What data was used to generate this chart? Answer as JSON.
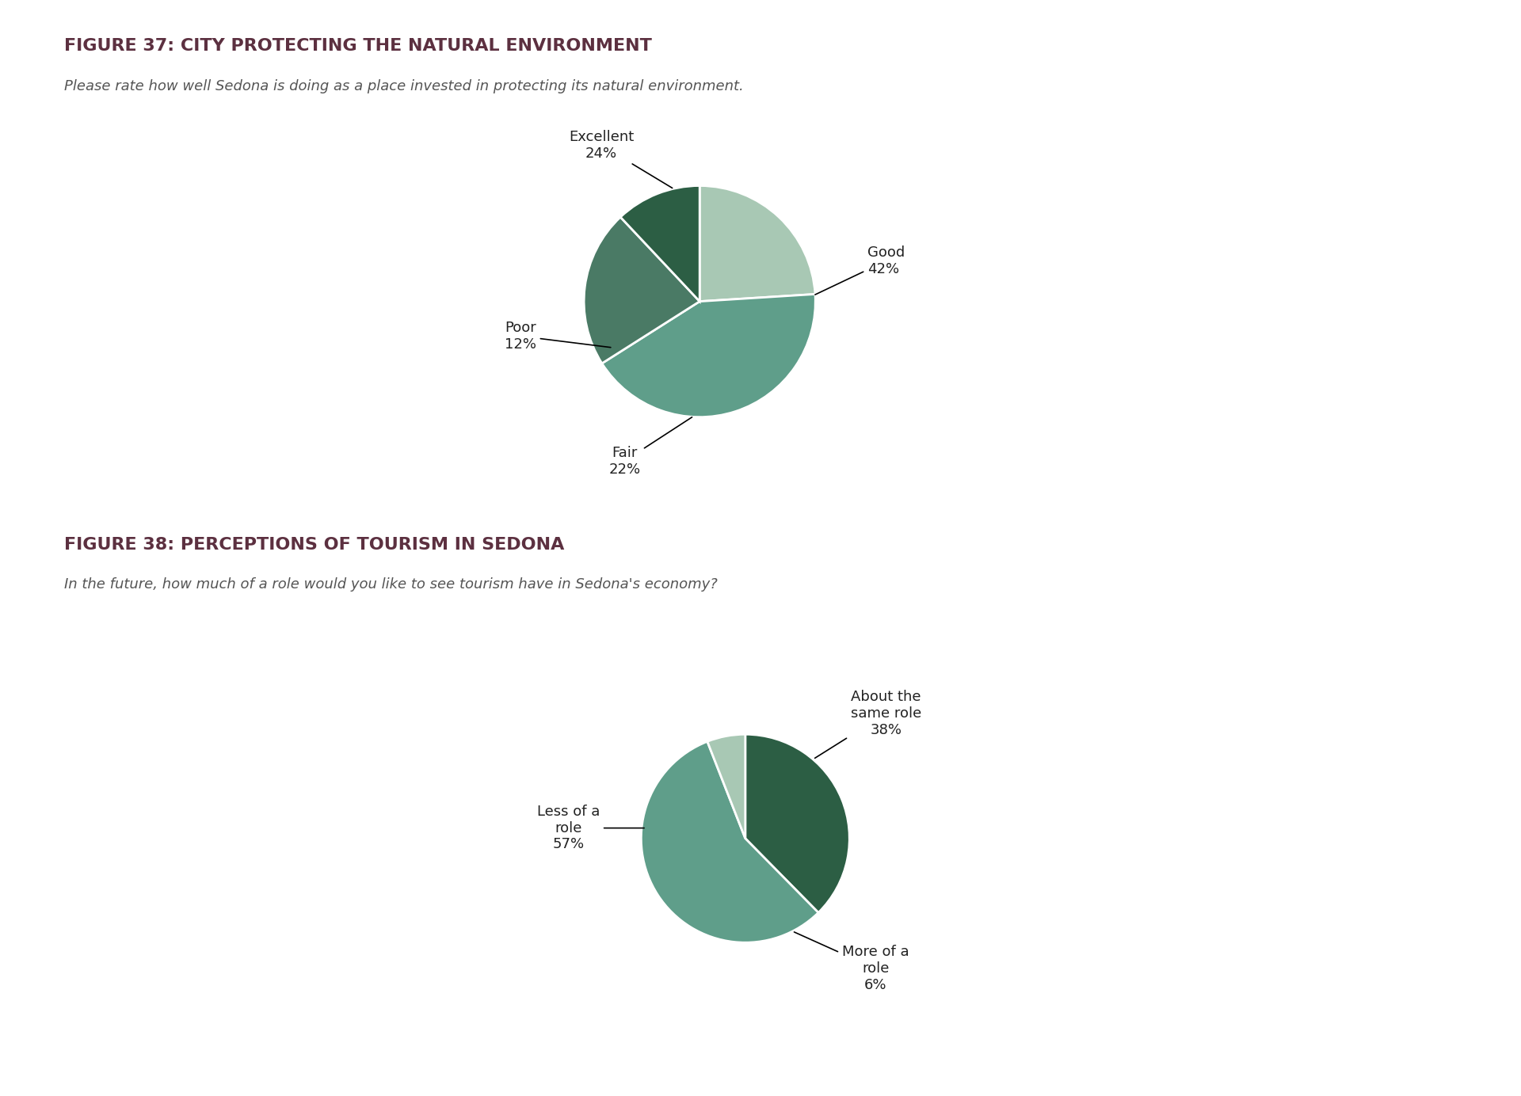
{
  "fig1_title": "FIGURE 37: CITY PROTECTING THE NATURAL ENVIRONMENT",
  "fig1_subtitle": "Please rate how well Sedona is doing as a place invested in protecting its natural environment.",
  "fig1_slices": [
    24,
    42,
    22,
    12
  ],
  "fig1_colors": [
    "#a8c8b4",
    "#5f9e8a",
    "#4a7a65",
    "#2c5e44"
  ],
  "fig1_startangle": 90,
  "fig2_title": "FIGURE 38: PERCEPTIONS OF TOURISM IN SEDONA",
  "fig2_subtitle": "In the future, how much of a role would you like to see tourism have in Sedona's economy?",
  "fig2_slices": [
    38,
    57,
    6
  ],
  "fig2_colors": [
    "#2c5e44",
    "#5f9e8a",
    "#a8c8b4"
  ],
  "fig2_startangle": 90,
  "title_color": "#5c3040",
  "subtitle_color": "#555555",
  "label_color": "#222222",
  "background_color": "#ffffff",
  "title_fontsize": 16,
  "subtitle_fontsize": 13,
  "label_fontsize": 13
}
